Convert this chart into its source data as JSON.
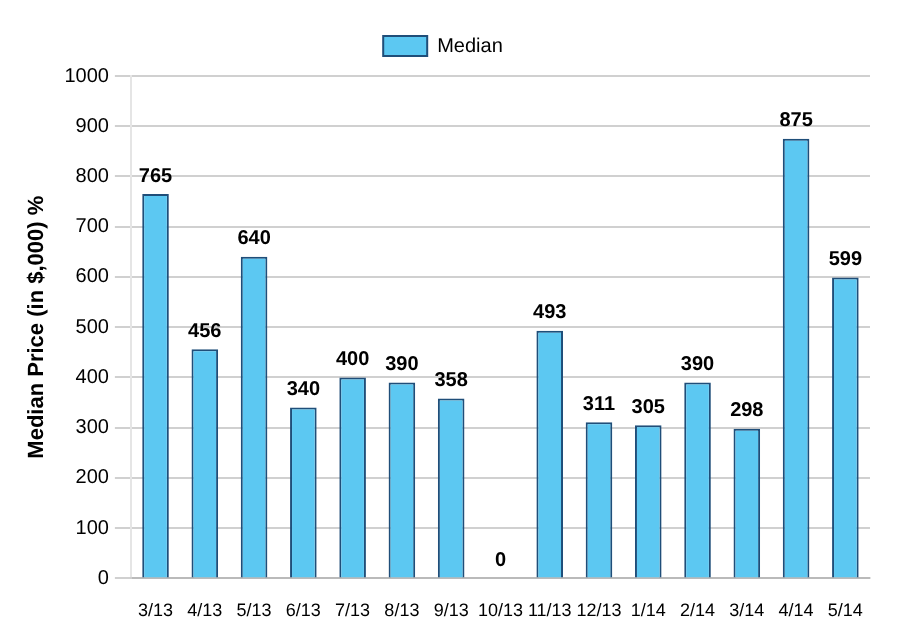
{
  "chart_data": {
    "type": "bar",
    "ylabel": "Median Price (in $,000) %",
    "categories": [
      "3/13",
      "4/13",
      "5/13",
      "6/13",
      "7/13",
      "8/13",
      "9/13",
      "10/13",
      "11/13",
      "12/13",
      "1/14",
      "2/14",
      "3/14",
      "4/14",
      "5/14"
    ],
    "series": [
      {
        "name": "Median",
        "color": "#5cc8f2",
        "values": [
          765,
          456,
          640,
          340,
          400,
          390,
          358,
          0,
          493,
          311,
          305,
          390,
          298,
          875,
          599
        ]
      }
    ],
    "ylim": [
      0,
      1000
    ],
    "yticks": [
      0,
      100,
      200,
      300,
      400,
      500,
      600,
      700,
      800,
      900,
      1000
    ],
    "grid": "y",
    "legend": "top",
    "data_labels": true
  }
}
